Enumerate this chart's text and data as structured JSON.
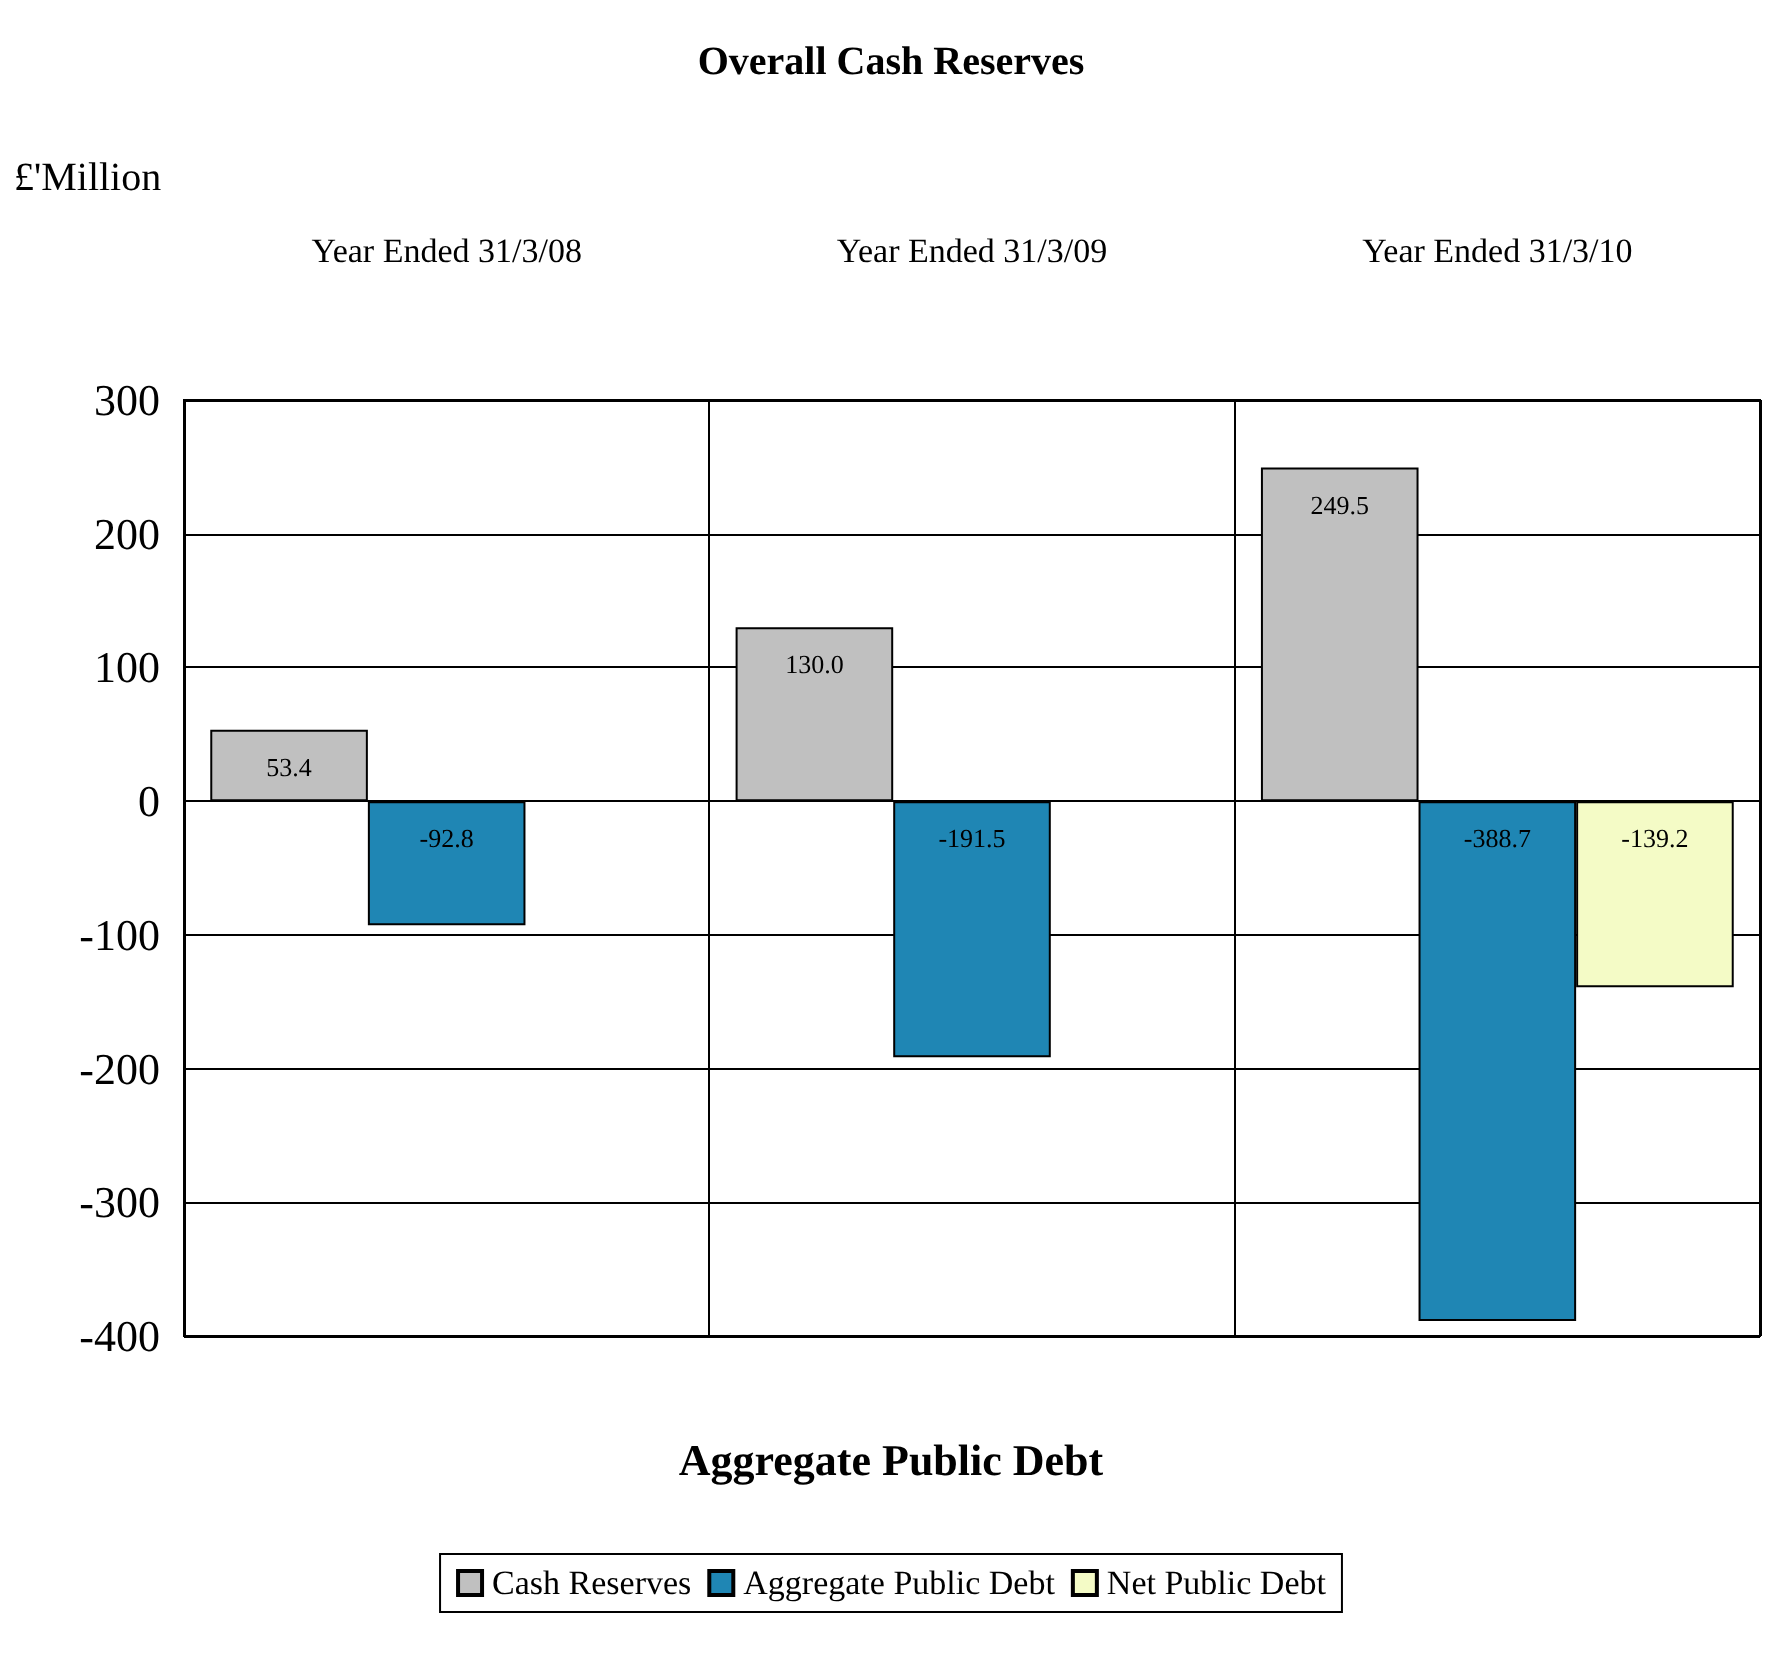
{
  "chart_data": {
    "type": "bar",
    "title": "Overall Cash Reserves",
    "ylabel": "£'Million",
    "xlabel": "Aggregate Public Debt",
    "categories": [
      "Year Ended 31/3/08",
      "Year Ended 31/3/09",
      "Year Ended 31/3/10"
    ],
    "series": [
      {
        "name": "Cash Reserves",
        "color": "#c0c0c0",
        "values": [
          53.4,
          130.0,
          249.5
        ],
        "value_labels": [
          "53.4",
          "130.0",
          "249.5"
        ]
      },
      {
        "name": "Aggregate Public Debt",
        "color": "#1f86b4",
        "values": [
          -92.8,
          -191.5,
          -388.7
        ],
        "value_labels": [
          "-92.8",
          "-191.5",
          "-388.7"
        ]
      },
      {
        "name": "Net Public Debt",
        "color": "#f4fbc6",
        "values": [
          null,
          null,
          -139.2
        ],
        "value_labels": [
          null,
          null,
          "-139.2"
        ]
      }
    ],
    "ylim": [
      -400,
      300
    ],
    "yticks": [
      -400,
      -300,
      -200,
      -100,
      0,
      100,
      200,
      300
    ],
    "grid": true,
    "legend": "bottom"
  }
}
